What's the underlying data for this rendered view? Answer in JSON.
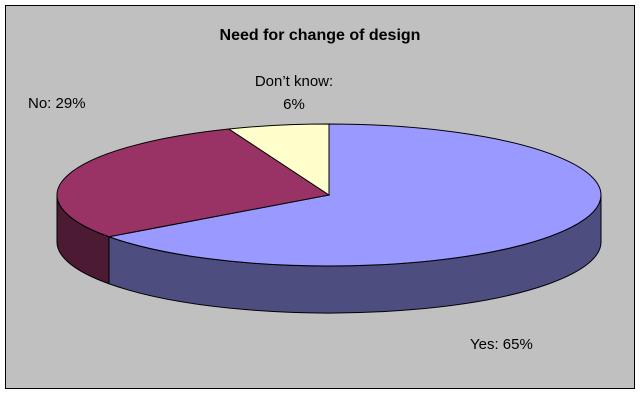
{
  "chart_data": {
    "type": "pie3d",
    "title": "Need for change of design",
    "values": [
      65,
      29,
      6
    ],
    "value_labels": [
      "Yes: 65%",
      "No: 29%",
      "Don’t know: 6%"
    ],
    "colors": [
      "#9999ff",
      "#993366",
      "#ffffcc"
    ]
  }
}
